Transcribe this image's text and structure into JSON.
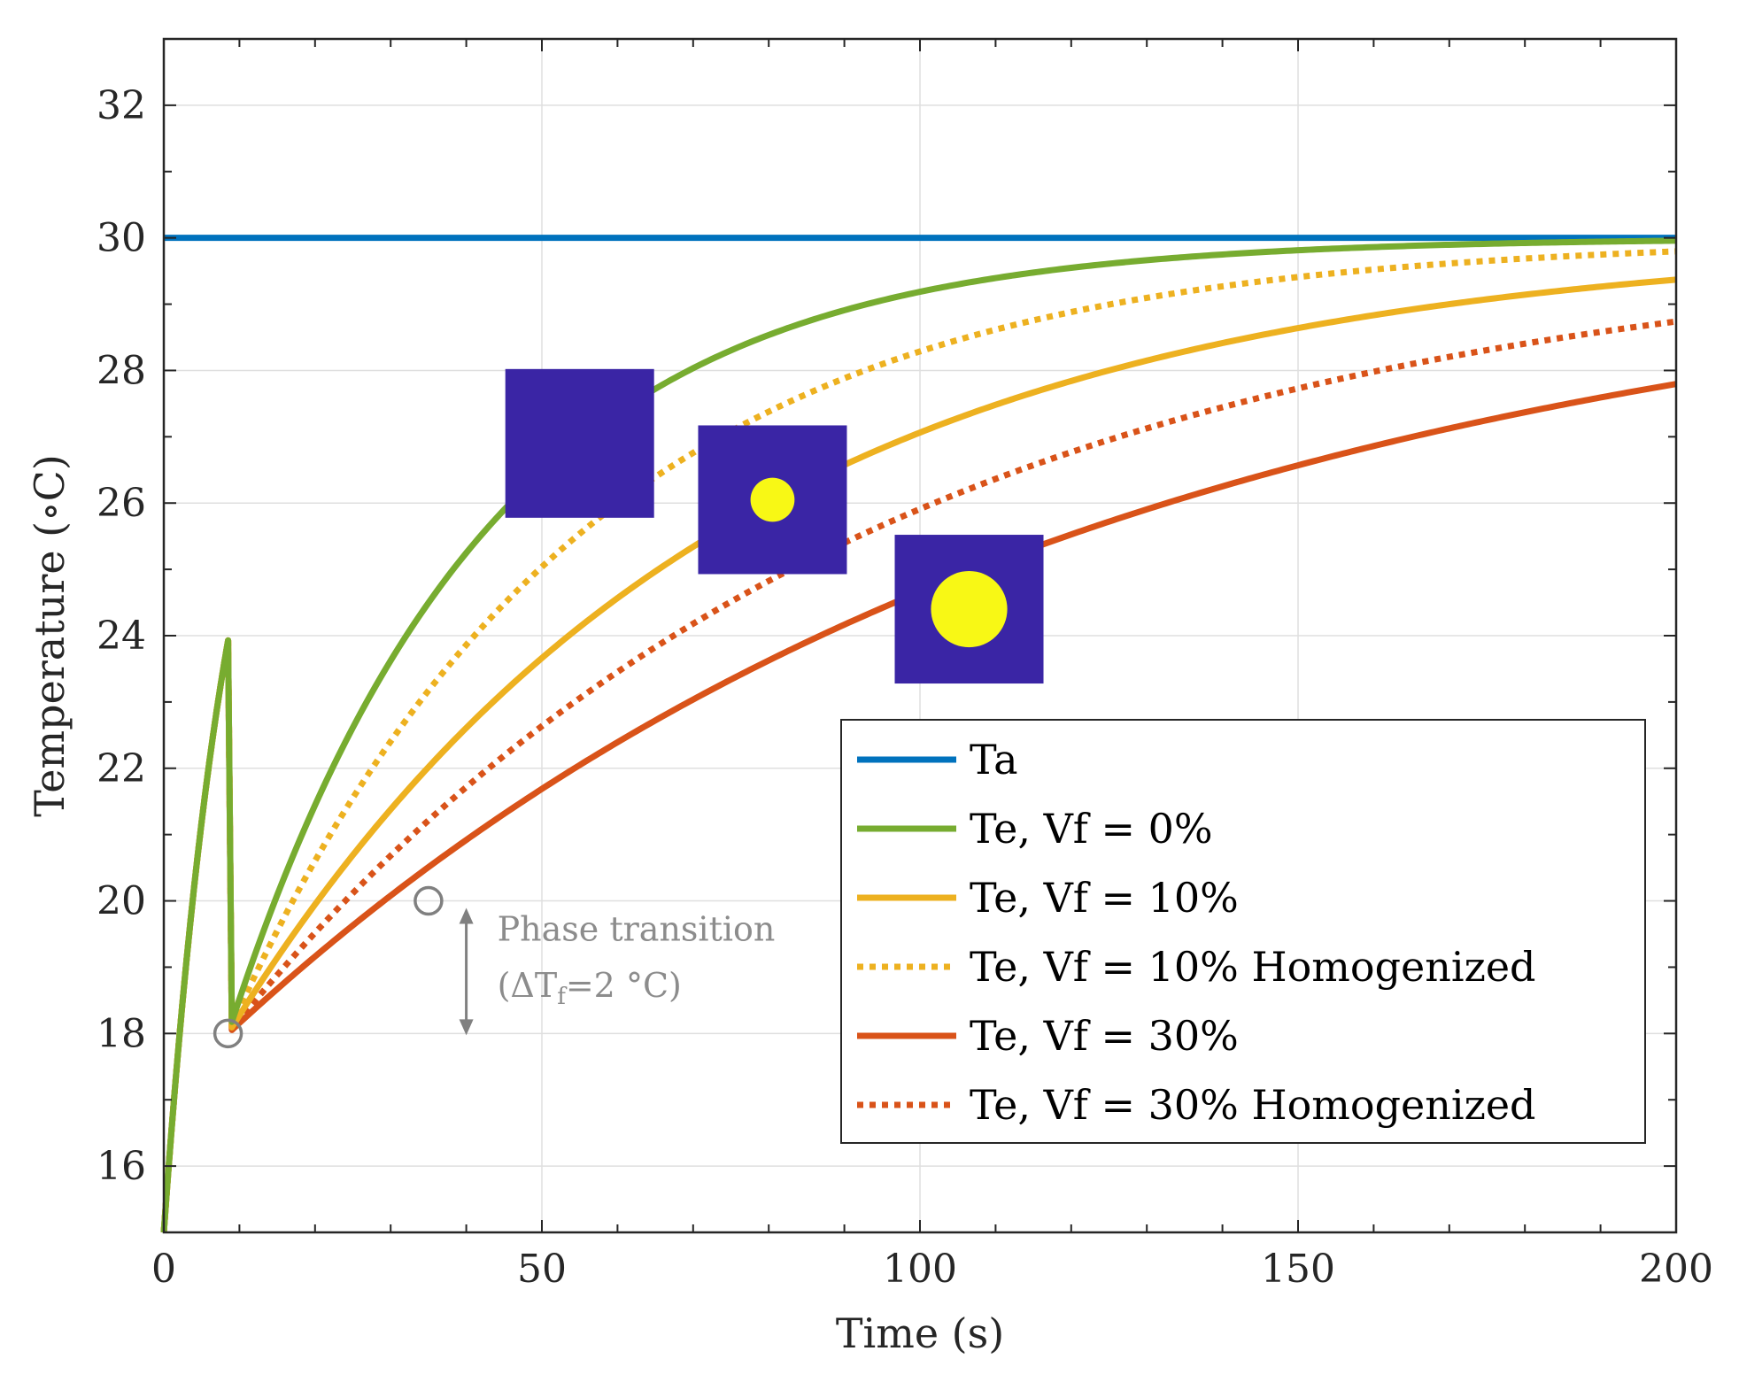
{
  "chart_data": {
    "type": "line",
    "title": "",
    "xlabel": "Time (s)",
    "ylabel": "Temperature (∘C)",
    "xlim": [
      0,
      200
    ],
    "ylim": [
      15,
      33
    ],
    "xticks": [
      0,
      50,
      100,
      150,
      200
    ],
    "yticks": [
      16,
      18,
      20,
      22,
      24,
      26,
      28,
      30,
      32
    ],
    "grid": true,
    "legend_position": "bottom-right",
    "series": [
      {
        "name": "T_a",
        "legend": "Ta",
        "color": "#0072bd",
        "style": "solid",
        "t_break": 0,
        "T_break": 30,
        "tau": 1,
        "T_inf": 30,
        "T0": 30,
        "tau0": 1
      },
      {
        "name": "T_e, V_f = 0%",
        "legend": "Te, Vf = 0%",
        "color": "#77ac30",
        "style": "solid",
        "t_break": 8.5,
        "T_break": 18,
        "tau": 34,
        "T_inf": 30,
        "T0": 15,
        "tau0": 9.4
      },
      {
        "name": "T_e, V_f = 10%",
        "legend": "Te, Vf = 10%",
        "color": "#edb120",
        "style": "solid",
        "t_break": 8.5,
        "T_break": 18,
        "tau": 65,
        "T_inf": 30,
        "T0": 15,
        "tau0": 9.4
      },
      {
        "name": "T_e, V_f = 10% Homogenized",
        "legend": "Te, Vf = 10% Homogenized",
        "color": "#edb120",
        "style": "dotted",
        "t_break": 8.5,
        "T_break": 18,
        "tau": 47,
        "T_inf": 30,
        "T0": 15,
        "tau0": 9.4
      },
      {
        "name": "T_e, V_f = 30%",
        "legend": "Te, Vf = 30%",
        "color": "#d95319",
        "style": "solid",
        "t_break": 8.5,
        "T_break": 18,
        "tau": 113,
        "T_inf": 30,
        "T0": 15,
        "tau0": 9.4
      },
      {
        "name": "T_e, V_f = 30% Homogenized",
        "legend": "Te, Vf = 30% Homogenized",
        "color": "#d95319",
        "style": "dotted",
        "t_break": 8.5,
        "T_break": 18,
        "tau": 85,
        "T_inf": 30,
        "T0": 15,
        "tau0": 9.4
      }
    ],
    "markers": [
      {
        "name": "phase-start",
        "x": 8.5,
        "y": 18
      },
      {
        "name": "phase-end",
        "x": 35,
        "y": 20
      }
    ],
    "annotation": {
      "line1": "Phase transition",
      "line2_prefix": "(ΔT",
      "line2_sub": "f",
      "line2_suffix": "=2 °C)",
      "arrow_x": 40,
      "arrow_y_range": [
        18,
        20
      ],
      "color": "#808080"
    },
    "insets": [
      {
        "name": "inset-vf-0",
        "x_center": 55,
        "y_center": 26.9,
        "inclusion_fraction": 0
      },
      {
        "name": "inset-vf-10",
        "x_center": 80.5,
        "y_center": 26.05,
        "inclusion_fraction": 0.1
      },
      {
        "name": "inset-vf-30",
        "x_center": 106.5,
        "y_center": 24.4,
        "inclusion_fraction": 0.3
      }
    ],
    "inset_colors": {
      "matrix": "#3a25a5",
      "inclusion": "#f8f815"
    }
  }
}
